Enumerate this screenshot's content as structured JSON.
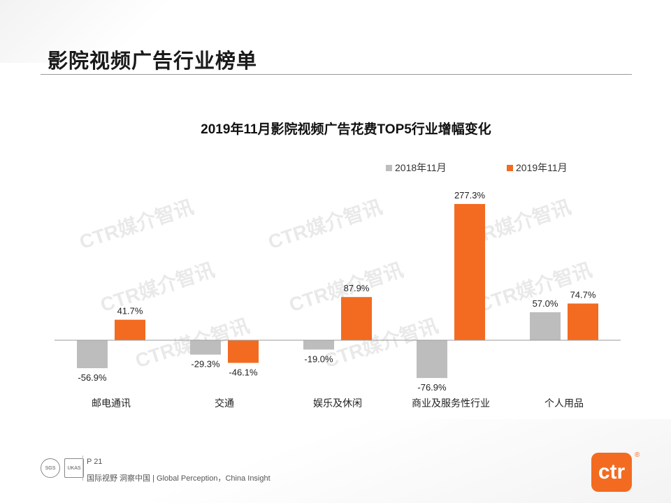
{
  "slide": {
    "title": "影院视频广告行业榜单"
  },
  "watermark_text": "CTR媒介智讯",
  "footer": {
    "page": "P 21",
    "tagline": "国际视野 洞察中国 | Global Perception，China Insight",
    "cert1": "SGS",
    "cert2": "UKAS",
    "logo": "ctr",
    "logo_mark": "®"
  },
  "colors": {
    "series_2018": "#bdbdbd",
    "series_2019": "#f26b21",
    "axis": "#9a9a9a"
  },
  "chart_data": {
    "type": "bar",
    "title": "2019年11月影院视频广告花费TOP5行业增幅变化",
    "categories": [
      "邮电通讯",
      "交通",
      "娱乐及休闲",
      "商业及服务性行业",
      "个人用品"
    ],
    "series": [
      {
        "name": "2018年11月",
        "values": [
          -56.9,
          -29.3,
          -19.0,
          -76.9,
          57.0
        ],
        "labels": [
          "-56.9%",
          "-29.3%",
          "-19.0%",
          "-76.9%",
          "57.0%"
        ]
      },
      {
        "name": "2019年11月",
        "values": [
          41.7,
          -46.1,
          87.9,
          277.3,
          74.7
        ],
        "labels": [
          "41.7%",
          "-46.1%",
          "87.9%",
          "277.3%",
          "74.7%"
        ]
      }
    ],
    "ylim": [
      -100,
      300
    ],
    "legend": "top-right",
    "grid": false
  }
}
